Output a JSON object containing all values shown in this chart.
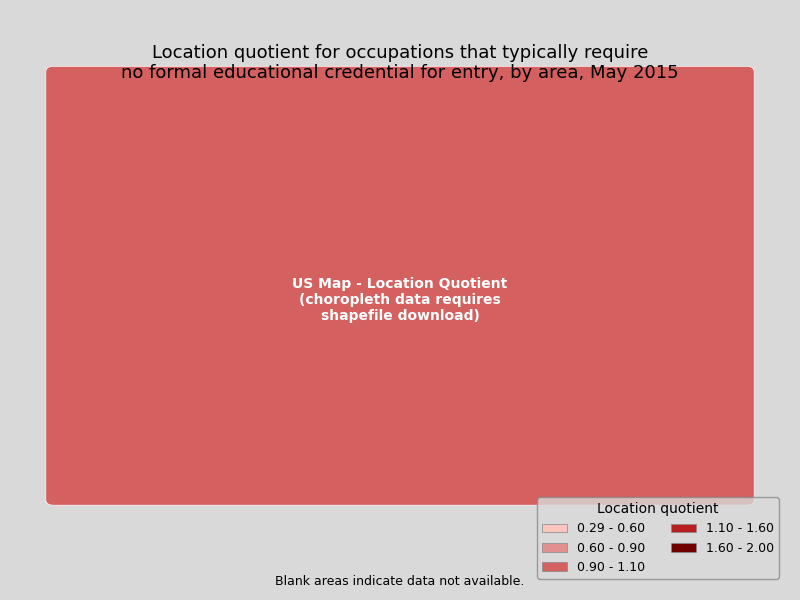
{
  "title_line1": "Location quotient for occupations that typically require",
  "title_line2": "no formal educational credential for entry, by area, May 2015",
  "title_fontsize": 13,
  "background_color": "#d9d9d9",
  "legend_title": "Location quotient",
  "legend_entries": [
    {
      "label": "0.29 - 0.60",
      "color": "#fcc5c0"
    },
    {
      "label": "0.60 - 0.90",
      "color": "#e09090"
    },
    {
      "label": "0.90 - 1.10",
      "color": "#d46060"
    },
    {
      "label": "1.10 - 1.60",
      "color": "#b82020"
    },
    {
      "label": "1.60 - 2.00",
      "color": "#700000"
    }
  ],
  "no_data_color": "#d9d9d9",
  "footnote": "Blank areas indicate data not available.",
  "footnote_fontsize": 9,
  "legend_fontsize": 9,
  "legend_title_fontsize": 10,
  "map_edge_color": "#ffffff",
  "map_edge_width": 0.3,
  "figsize": [
    8.0,
    6.0
  ],
  "dpi": 100
}
